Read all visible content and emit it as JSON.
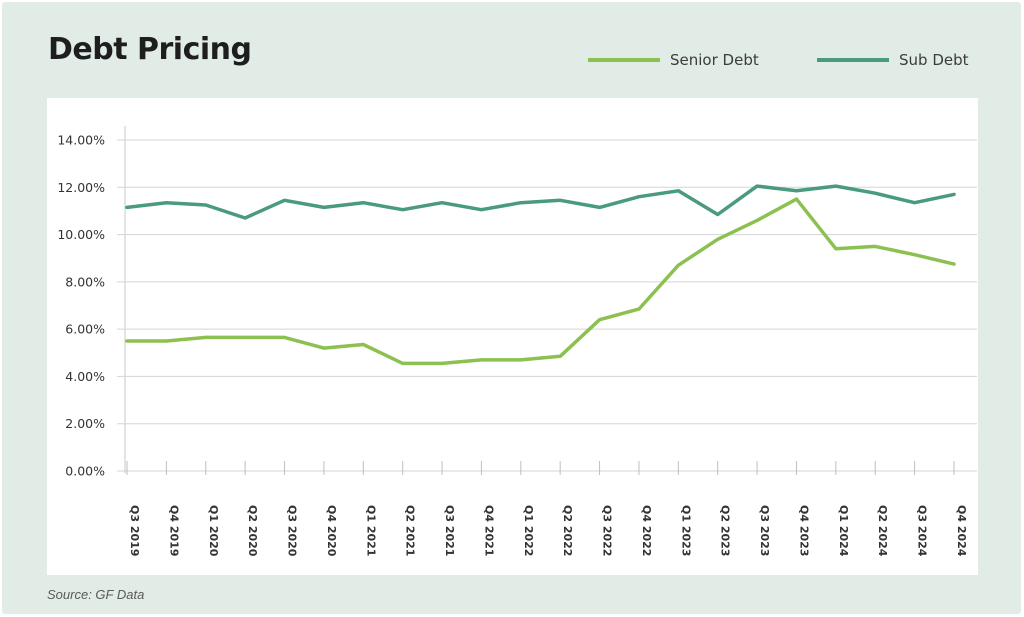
{
  "header": {
    "title": "Debt Pricing"
  },
  "footer": {
    "source": "Source: GF Data"
  },
  "colors": {
    "background": "#e1ece7",
    "senior": "#8cc051",
    "sub": "#4a9a7c",
    "grid": "#d5d5d5"
  },
  "chart_data": {
    "type": "line",
    "title": "Debt Pricing",
    "xlabel": "",
    "ylabel": "",
    "ylim": [
      0,
      14
    ],
    "y_ticks": [
      "0.00%",
      "2.00%",
      "4.00%",
      "6.00%",
      "8.00%",
      "10.00%",
      "12.00%",
      "14.00%"
    ],
    "y_tick_values": [
      0,
      2,
      4,
      6,
      8,
      10,
      12,
      14
    ],
    "grid": true,
    "legend_position": "top-right",
    "categories": [
      "Q3 2019",
      "Q4 2019",
      "Q1 2020",
      "Q2 2020",
      "Q3 2020",
      "Q4 2020",
      "Q1 2021",
      "Q2 2021",
      "Q3 2021",
      "Q4 2021",
      "Q1 2022",
      "Q2 2022",
      "Q3 2022",
      "Q4 2022",
      "Q1 2023",
      "Q2 2023",
      "Q3 2023",
      "Q4 2023",
      "Q1 2024",
      "Q2 2024",
      "Q3 2024",
      "Q4 2024"
    ],
    "series": [
      {
        "name": "Senior Debt",
        "color": "#8cc051",
        "values": [
          5.5,
          5.5,
          5.65,
          5.65,
          5.65,
          5.2,
          5.35,
          4.55,
          4.55,
          4.7,
          4.7,
          4.85,
          6.4,
          6.85,
          8.7,
          9.8,
          10.6,
          11.5,
          9.4,
          9.5,
          9.15,
          8.75
        ]
      },
      {
        "name": "Sub Debt",
        "color": "#4a9a7c",
        "values": [
          11.15,
          11.35,
          11.25,
          10.7,
          11.45,
          11.15,
          11.35,
          11.05,
          11.35,
          11.05,
          11.35,
          11.45,
          11.15,
          11.6,
          11.85,
          10.85,
          12.05,
          11.85,
          12.05,
          11.75,
          11.35,
          11.7
        ]
      }
    ]
  }
}
